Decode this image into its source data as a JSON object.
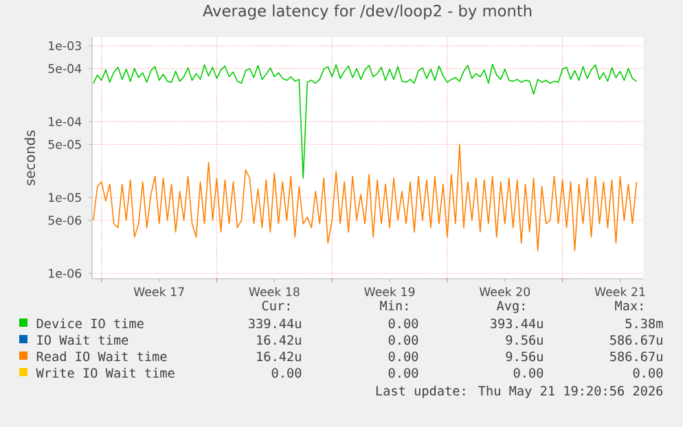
{
  "chart_data": {
    "type": "line",
    "title": "Average latency for /dev/loop2 - by month",
    "ylabel": "seconds",
    "categories": [
      null,
      null,
      null,
      null,
      null,
      null,
      null,
      null,
      null,
      null,
      null,
      null,
      null,
      null,
      null,
      null,
      "Week 17",
      null,
      null,
      null,
      null,
      null,
      null,
      null,
      null,
      null,
      null,
      null,
      null,
      null,
      null,
      null,
      null,
      null,
      null,
      null,
      null,
      null,
      null,
      null,
      null,
      null,
      null,
      null,
      "Week 18",
      null,
      null,
      null,
      null,
      null,
      null,
      null,
      null,
      null,
      null,
      null,
      null,
      null,
      null,
      null,
      null,
      null,
      null,
      null,
      null,
      null,
      null,
      null,
      null,
      null,
      null,
      null,
      "Week 19",
      null,
      null,
      null,
      null,
      null,
      null,
      null,
      null,
      null,
      null,
      null,
      null,
      null,
      null,
      null,
      null,
      null,
      null,
      null,
      null,
      null,
      null,
      null,
      null,
      null,
      null,
      null,
      "Week 20",
      null,
      null,
      null,
      null,
      null,
      null,
      null,
      null,
      null,
      null,
      null,
      null,
      null,
      null,
      null,
      null,
      null,
      null,
      null,
      null,
      null,
      null,
      null,
      null,
      null,
      null,
      null,
      "Week 21",
      null,
      null,
      null,
      null
    ],
    "series": [
      {
        "name": "Device IO time",
        "color": "#00cc00",
        "values": [
          0.00032,
          0.00041,
          0.00035,
          0.00048,
          0.00033,
          0.00045,
          0.00052,
          0.00036,
          0.00049,
          0.00034,
          0.0005,
          0.00038,
          0.00044,
          0.00033,
          0.00047,
          0.00053,
          0.00035,
          0.00042,
          0.00034,
          0.00033,
          0.00046,
          0.00034,
          0.00039,
          0.00051,
          0.00035,
          0.00043,
          0.00036,
          0.00056,
          0.0004,
          0.00052,
          0.00037,
          0.00048,
          0.00054,
          0.00039,
          0.00045,
          0.00034,
          0.00032,
          0.00047,
          0.0005,
          0.00038,
          0.00055,
          0.00036,
          0.00042,
          0.00051,
          0.00039,
          0.00044,
          0.00037,
          0.00035,
          0.00039,
          0.00034,
          0.00036,
          1.8e-05,
          0.00033,
          0.00035,
          0.00032,
          0.00036,
          0.00049,
          0.00053,
          0.00039,
          0.00056,
          0.00037,
          0.00046,
          0.00054,
          0.00038,
          0.0005,
          0.00036,
          0.00048,
          0.00055,
          0.00039,
          0.00043,
          0.00052,
          0.00035,
          0.00049,
          0.00036,
          0.00053,
          0.00034,
          0.00033,
          0.00036,
          0.00032,
          0.00047,
          0.00051,
          0.00037,
          0.00049,
          0.00035,
          0.00054,
          0.0004,
          0.00033,
          0.00036,
          0.00038,
          0.00034,
          0.00046,
          0.00055,
          0.00037,
          0.00043,
          0.00039,
          0.00048,
          0.00032,
          0.00057,
          0.00041,
          0.00036,
          0.00049,
          0.00035,
          0.00034,
          0.00036,
          0.00033,
          0.00035,
          0.00034,
          0.00023,
          0.00036,
          0.00033,
          0.00035,
          0.00032,
          0.00034,
          0.00033,
          0.00049,
          0.00052,
          0.00036,
          0.00047,
          0.00035,
          0.00053,
          0.00037,
          0.00048,
          0.00056,
          0.00036,
          0.00044,
          0.00034,
          0.00051,
          0.00038,
          0.00046,
          0.00035,
          0.0005,
          0.00037,
          0.00034
        ]
      },
      {
        "name": "IO Wait time",
        "color": "#0066b3",
        "values": [
          null,
          null,
          null,
          null,
          null,
          null,
          null,
          null,
          null,
          null,
          null,
          null,
          null,
          null,
          null,
          null,
          null,
          null,
          null,
          null,
          null,
          null,
          null,
          null,
          null,
          null,
          null,
          null,
          null,
          null,
          null,
          null,
          null,
          null,
          null,
          null,
          null,
          null,
          null,
          null,
          null,
          null,
          null,
          null,
          null,
          null,
          null,
          null,
          null,
          null,
          null,
          null,
          null,
          null,
          null,
          null,
          null,
          null,
          null,
          null,
          null,
          null,
          null,
          null,
          null,
          null,
          null,
          null,
          null,
          null,
          null,
          null,
          null,
          null,
          null,
          null,
          null,
          null,
          null,
          null,
          null,
          null,
          null,
          null,
          null,
          null,
          null,
          null,
          null,
          null,
          null,
          null,
          null,
          null,
          null,
          null,
          null,
          null,
          null,
          null,
          null,
          null,
          null,
          null,
          null,
          null,
          null,
          null,
          null,
          null,
          null,
          null,
          null,
          null,
          null,
          null,
          null,
          null,
          null,
          null,
          null,
          null,
          null,
          null,
          null,
          null,
          null,
          null,
          null,
          null,
          null,
          null,
          null
        ]
      },
      {
        "name": "Read IO Wait time",
        "color": "#ff8000",
        "values": [
          5e-06,
          1.4e-05,
          1.6e-05,
          9e-06,
          1.5e-05,
          4.5e-06,
          4e-06,
          1.5e-05,
          5e-06,
          1.7e-05,
          3e-06,
          4.5e-06,
          1.6e-05,
          4e-06,
          1.1e-05,
          1.9e-05,
          4.5e-06,
          1.8e-05,
          5e-06,
          1.5e-05,
          3.5e-06,
          1.2e-05,
          5e-06,
          1.9e-05,
          4.5e-06,
          3e-06,
          1.6e-05,
          4.5e-06,
          2.9e-05,
          5e-06,
          1.8e-05,
          3.5e-06,
          1.7e-05,
          4.5e-06,
          1.6e-05,
          4e-06,
          5e-06,
          2.3e-05,
          1.8e-05,
          4.5e-06,
          1.3e-05,
          4e-06,
          1.7e-05,
          3.5e-06,
          2.1e-05,
          4.5e-06,
          1.6e-05,
          5e-06,
          1.9e-05,
          3e-06,
          1.4e-05,
          4.5e-06,
          5.5e-06,
          4e-06,
          1.2e-05,
          4.5e-06,
          1.8e-05,
          2.5e-06,
          5e-06,
          2.2e-05,
          4.5e-06,
          1.6e-05,
          3.5e-06,
          1.9e-05,
          5e-06,
          1.1e-05,
          4.5e-06,
          2e-05,
          3e-06,
          1.7e-05,
          4.5e-06,
          1.5e-05,
          4e-06,
          1.8e-05,
          5e-06,
          1.2e-05,
          4.5e-06,
          1.6e-05,
          3.5e-06,
          1.9e-05,
          5e-06,
          1.7e-05,
          4e-06,
          1.9e-05,
          4.5e-06,
          1.5e-05,
          3e-06,
          2e-05,
          4.5e-06,
          5e-05,
          4e-06,
          1.6e-05,
          5e-06,
          1.8e-05,
          3.5e-06,
          1.7e-05,
          4.5e-06,
          1.9e-05,
          3e-06,
          1.6e-05,
          4.5e-06,
          1.8e-05,
          4e-06,
          1.7e-05,
          2.5e-06,
          1.5e-05,
          3.5e-06,
          1.8e-05,
          2e-06,
          1.4e-05,
          4.5e-06,
          5e-06,
          1.9e-05,
          4.5e-06,
          1.7e-05,
          4e-06,
          1.6e-05,
          2e-06,
          1.5e-05,
          4.5e-06,
          1.8e-05,
          3e-06,
          1.9e-05,
          4.5e-06,
          1.6e-05,
          4e-06,
          1.7e-05,
          2.5e-06,
          1.9e-05,
          5e-06,
          1.5e-05,
          4.5e-06,
          1.6e-05
        ]
      },
      {
        "name": "Write IO Wait time",
        "color": "#ffcc00",
        "values": [
          null,
          null,
          null,
          null,
          null,
          null,
          null,
          null,
          null,
          null,
          null,
          null,
          null,
          null,
          null,
          null,
          null,
          null,
          null,
          null,
          null,
          null,
          null,
          null,
          null,
          null,
          null,
          null,
          null,
          null,
          null,
          null,
          null,
          null,
          null,
          null,
          null,
          null,
          null,
          null,
          null,
          null,
          null,
          null,
          null,
          null,
          null,
          null,
          null,
          null,
          null,
          null,
          null,
          null,
          null,
          null,
          null,
          null,
          null,
          null,
          null,
          null,
          null,
          null,
          null,
          null,
          null,
          null,
          null,
          null,
          null,
          null,
          null,
          null,
          null,
          null,
          null,
          null,
          null,
          null,
          null,
          null,
          null,
          null,
          null,
          null,
          null,
          null,
          null,
          null,
          null,
          null,
          null,
          null,
          null,
          null,
          null,
          null,
          null,
          null,
          null,
          null,
          null,
          null,
          null,
          null,
          null,
          null,
          null,
          null,
          null,
          null,
          null,
          null,
          null,
          null,
          null,
          null,
          null,
          null,
          null,
          null,
          null,
          null,
          null,
          null,
          null,
          null,
          null,
          null,
          null,
          null,
          null
        ]
      }
    ],
    "log": "y",
    "ylim": [
      8.5e-07,
      0.0013
    ],
    "yticks": [
      {
        "value": 1e-06,
        "label": "1e-06"
      },
      {
        "value": 5e-06,
        "label": "5e-06"
      },
      {
        "value": 1e-05,
        "label": "1e-05"
      },
      {
        "value": 5e-05,
        "label": "5e-05"
      },
      {
        "value": 0.0001,
        "label": "1e-04"
      },
      {
        "value": 0.0005,
        "label": "5e-04"
      },
      {
        "value": 0.001,
        "label": "1e-03"
      }
    ],
    "grid": true,
    "legend": "bottom",
    "annotations": [
      "Cur:",
      "Min:",
      "Avg:",
      "Max:",
      "339.44u",
      "0.00",
      "393.44u",
      "5.38m",
      "16.42u",
      "0.00",
      "9.56u",
      "586.67u",
      "16.42u",
      "0.00",
      "9.56u",
      "586.67u",
      "0.00",
      "0.00",
      "0.00",
      "0.00",
      "Last update: Thu May 21 19:20:56 2026"
    ]
  }
}
